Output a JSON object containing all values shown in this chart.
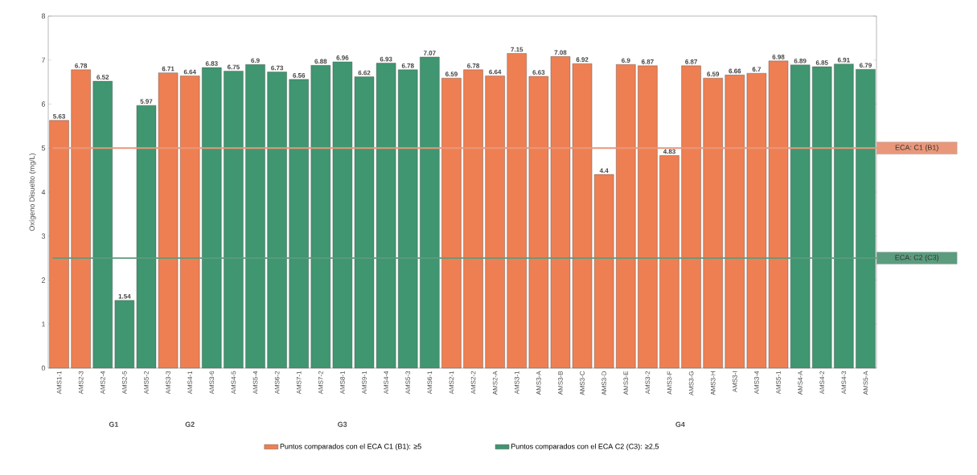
{
  "chart_data": {
    "type": "bar",
    "ylabel": "Oxígeno Disuelto (mg/L)",
    "categories": [
      "AMS1-1",
      "AMS2-3",
      "AMS2-4",
      "AMS2-5",
      "AMS5-2",
      "AMS3-3",
      "AMS4-1",
      "AMS3-6",
      "AMS4-5",
      "AMS5-4",
      "AMS6-2",
      "AMS7-1",
      "AMS7-2",
      "AMS8-1",
      "AMS9-1",
      "AMS4-4",
      "AMS5-3",
      "AMS6-1",
      "AMS2-1",
      "AMS2-2",
      "AMS2-A",
      "AMS3-1",
      "AMS3-A",
      "AMS3-B",
      "AMS3-C",
      "AMS3-D",
      "AMS3-E",
      "AMS3-2",
      "AMS3-F",
      "AMS3-G",
      "AMS3-H",
      "AMS3-I",
      "AMS3-4",
      "AMS5-1",
      "AMS4-A",
      "AMS4-2",
      "AMS4-3",
      "AMS5-A"
    ],
    "series": [
      {
        "name": "Puntos comparados con el ECA C1 (B1): ≥5",
        "color": "#ee7f52",
        "values": [
          5.63,
          6.78,
          null,
          null,
          null,
          6.71,
          6.64,
          null,
          null,
          null,
          null,
          null,
          null,
          null,
          null,
          null,
          null,
          null,
          6.59,
          6.78,
          6.64,
          7.15,
          6.63,
          7.08,
          6.92,
          4.4,
          6.9,
          6.87,
          4.83,
          6.87,
          6.59,
          6.66,
          6.7,
          6.98,
          null,
          null,
          null,
          null
        ]
      },
      {
        "name": "Puntos comparados con el ECA C2 (C3): ≥2,5",
        "color": "#3f9670",
        "values": [
          null,
          null,
          6.52,
          1.54,
          5.97,
          null,
          null,
          6.83,
          6.75,
          6.9,
          6.73,
          6.56,
          6.88,
          6.96,
          6.62,
          6.93,
          6.78,
          7.07,
          null,
          null,
          null,
          null,
          null,
          null,
          null,
          null,
          null,
          null,
          null,
          null,
          null,
          null,
          null,
          null,
          6.89,
          6.85,
          6.91,
          6.79
        ]
      }
    ],
    "ylim": [
      0,
      8
    ],
    "yticks": [
      0,
      1,
      2,
      3,
      4,
      5,
      6,
      7,
      8
    ],
    "data_labels": true,
    "legend": "bottom",
    "ref_lines": [
      {
        "axis": "y",
        "value": 5,
        "label": "ECA: C1 (B1)",
        "color": "#e9977a"
      },
      {
        "axis": "y",
        "value": 2.5,
        "label": "ECA: C2 (C3)",
        "color": "#5c9c7e"
      }
    ],
    "annotations": [
      "G1",
      "G2",
      "G3",
      "G4"
    ]
  }
}
